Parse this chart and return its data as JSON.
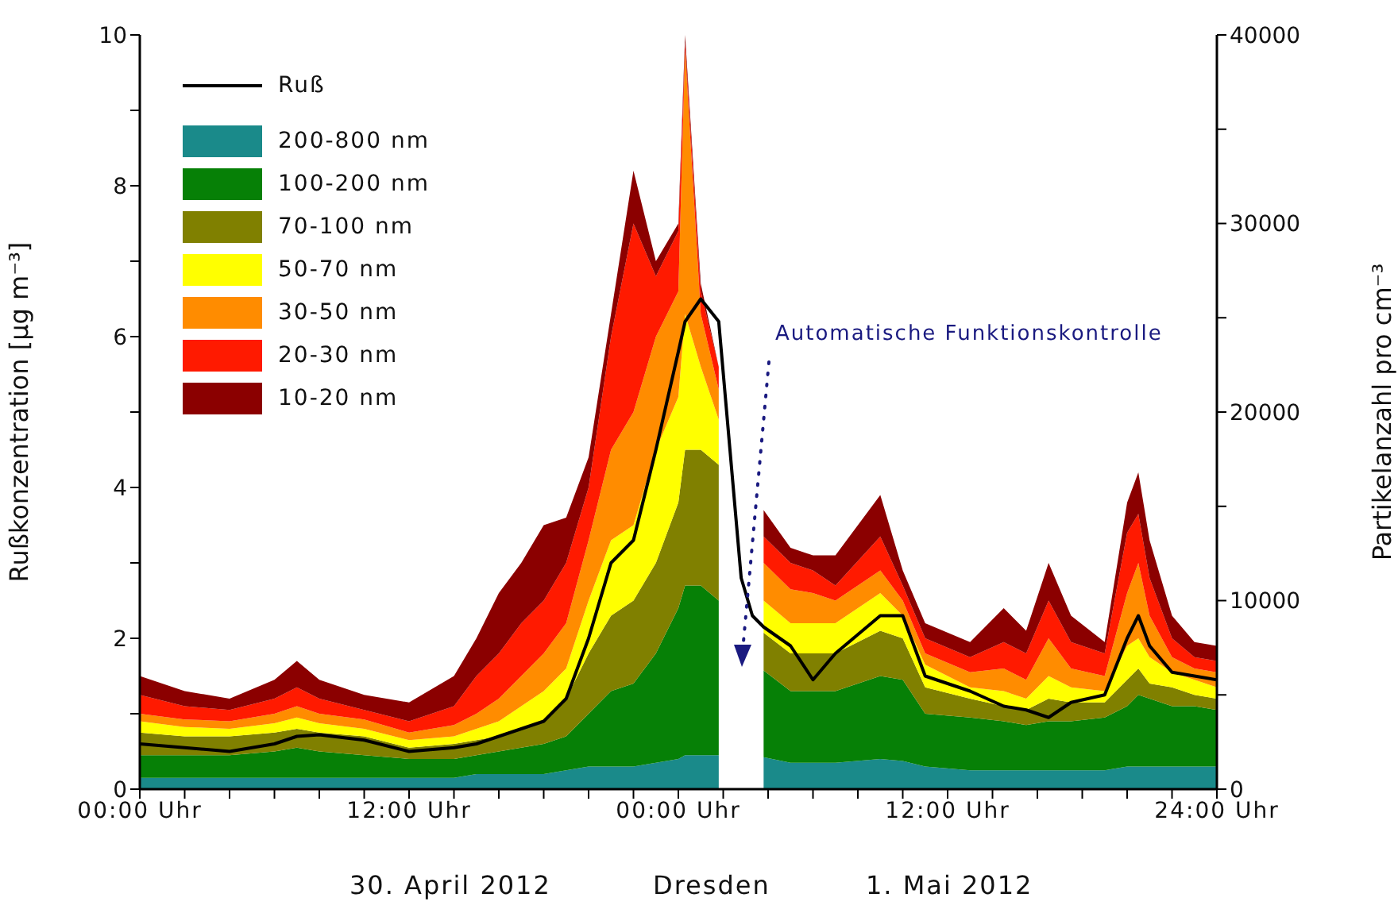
{
  "chart_data": {
    "type": "area",
    "stacked": true,
    "legend": "top left",
    "ylabel": "Rußkonzentration [µg m⁻³]",
    "y2label": "Partikelanzahl pro cm⁻³",
    "annotations": [
      "Automatische Funktionskontrolle",
      "30. April 2012",
      "Dresden",
      "1. Mai 2012"
    ],
    "x": [
      "2012-04-30T00:00",
      "2012-04-30T02:00",
      "2012-04-30T04:00",
      "2012-04-30T06:00",
      "2012-04-30T07:00",
      "2012-04-30T08:00",
      "2012-04-30T10:00",
      "2012-04-30T12:00",
      "2012-04-30T14:00",
      "2012-04-30T15:00",
      "2012-04-30T16:00",
      "2012-04-30T17:00",
      "2012-04-30T18:00",
      "2012-04-30T19:00",
      "2012-04-30T20:00",
      "2012-04-30T21:00",
      "2012-04-30T22:00",
      "2012-04-30T23:00",
      "2012-05-01T00:00",
      "2012-05-01T00:18",
      "2012-05-01T01:00",
      "2012-05-01T01:48",
      "2012-05-01T02:18",
      "2012-05-01T02:48",
      "2012-05-01T03:18",
      "2012-05-01T03:48",
      "2012-05-01T05:00",
      "2012-05-01T06:00",
      "2012-05-01T07:00",
      "2012-05-01T09:00",
      "2012-05-01T10:00",
      "2012-05-01T11:00",
      "2012-05-01T13:00",
      "2012-05-01T14:30",
      "2012-05-01T15:30",
      "2012-05-01T16:30",
      "2012-05-01T17:30",
      "2012-05-01T19:00",
      "2012-05-01T20:00",
      "2012-05-01T20:30",
      "2012-05-01T21:00",
      "2012-05-01T22:00",
      "2012-05-01T23:00",
      "2012-05-02T00:00"
    ],
    "xlim": [
      "2012-04-30T00:00",
      "2012-05-02T00:00"
    ],
    "xticks": [
      {
        "value": "2012-04-30T00:00",
        "label": "00:00 Uhr"
      },
      {
        "value": "2012-04-30T02:00",
        "label": null
      },
      {
        "value": "2012-04-30T04:00",
        "label": null
      },
      {
        "value": "2012-04-30T06:00",
        "label": null
      },
      {
        "value": "2012-04-30T08:00",
        "label": null
      },
      {
        "value": "2012-04-30T10:00",
        "label": null
      },
      {
        "value": "2012-04-30T12:00",
        "label": "12:00 Uhr"
      },
      {
        "value": "2012-04-30T14:00",
        "label": null
      },
      {
        "value": "2012-04-30T16:00",
        "label": null
      },
      {
        "value": "2012-04-30T18:00",
        "label": null
      },
      {
        "value": "2012-04-30T20:00",
        "label": null
      },
      {
        "value": "2012-04-30T22:00",
        "label": null
      },
      {
        "value": "2012-05-01T00:00",
        "label": "00:00 Uhr"
      },
      {
        "value": "2012-05-01T02:00",
        "label": null
      },
      {
        "value": "2012-05-01T04:00",
        "label": null
      },
      {
        "value": "2012-05-01T06:00",
        "label": null
      },
      {
        "value": "2012-05-01T08:00",
        "label": null
      },
      {
        "value": "2012-05-01T10:00",
        "label": null
      },
      {
        "value": "2012-05-01T12:00",
        "label": "12:00 Uhr"
      },
      {
        "value": "2012-05-01T14:00",
        "label": null
      },
      {
        "value": "2012-05-01T16:00",
        "label": null
      },
      {
        "value": "2012-05-01T18:00",
        "label": null
      },
      {
        "value": "2012-05-01T20:00",
        "label": null
      },
      {
        "value": "2012-05-01T22:00",
        "label": null
      },
      {
        "value": "2012-05-02T00:00",
        "label": "24:00 Uhr"
      }
    ],
    "ylim": [
      0,
      10
    ],
    "yticks": [
      0,
      {
        "value": 1,
        "label": null
      },
      2,
      {
        "value": 3,
        "label": null
      },
      4,
      {
        "value": 5,
        "label": null
      },
      6,
      {
        "value": 7,
        "label": null
      },
      8,
      {
        "value": 9,
        "label": null
      },
      10
    ],
    "y2lim": [
      0,
      40000
    ],
    "y2ticks": [
      0,
      {
        "value": 5000,
        "label": null
      },
      10000,
      {
        "value": 15000,
        "label": null
      },
      20000,
      {
        "value": 25000,
        "label": null
      },
      30000,
      {
        "value": 35000,
        "label": null
      },
      40000
    ],
    "series": [
      {
        "name": "Ruß",
        "type": "line",
        "color": "#000000",
        "values": [
          0.6,
          0.55,
          0.5,
          0.6,
          0.7,
          0.72,
          0.65,
          0.5,
          0.55,
          0.6,
          0.7,
          0.8,
          0.9,
          1.2,
          2.0,
          3.0,
          3.3,
          4.5,
          5.8,
          6.2,
          6.5,
          6.2,
          4.5,
          2.8,
          2.3,
          2.15,
          1.9,
          1.45,
          1.8,
          2.3,
          2.3,
          1.5,
          1.3,
          1.1,
          1.05,
          0.95,
          1.15,
          1.25,
          2.0,
          2.3,
          1.9,
          1.55,
          1.5,
          1.45
        ]
      },
      {
        "name": "200-800 nm",
        "axis": "y2",
        "color": "#1a8a8a",
        "values": [
          600,
          600,
          600,
          600,
          600,
          600,
          600,
          600,
          600,
          800,
          800,
          800,
          800,
          1000,
          1200,
          1200,
          1200,
          1400,
          1600,
          1800,
          1800,
          1800,
          null,
          null,
          null,
          1700,
          1400,
          1400,
          1400,
          1600,
          1500,
          1200,
          1000,
          1000,
          1000,
          1000,
          1000,
          1000,
          1200,
          1200,
          1200,
          1200,
          1200,
          1200
        ]
      },
      {
        "name": "100-200 nm",
        "axis": "y2",
        "color": "#068006",
        "values": [
          1200,
          1200,
          1200,
          1400,
          1600,
          1400,
          1200,
          1000,
          1000,
          1000,
          1200,
          1400,
          1600,
          1800,
          2800,
          4000,
          4400,
          5800,
          8000,
          9000,
          9000,
          8200,
          null,
          null,
          null,
          4600,
          3800,
          3800,
          3800,
          4400,
          4300,
          2800,
          2800,
          2600,
          2400,
          2600,
          2600,
          2800,
          3200,
          3800,
          3600,
          3200,
          3200,
          3000
        ]
      },
      {
        "name": "70-100 nm",
        "axis": "y2",
        "color": "#808000",
        "values": [
          1200,
          1000,
          1000,
          1000,
          1000,
          1000,
          1000,
          600,
          800,
          800,
          800,
          1000,
          1200,
          2000,
          3200,
          4000,
          4400,
          4800,
          5600,
          7200,
          7200,
          7200,
          null,
          null,
          null,
          2000,
          2000,
          2000,
          2000,
          2400,
          2200,
          1400,
          1000,
          800,
          800,
          1200,
          1000,
          800,
          1400,
          1400,
          800,
          1000,
          600,
          600
        ]
      },
      {
        "name": "50-70 nm",
        "axis": "y2",
        "color": "#ffff00",
        "values": [
          600,
          500,
          400,
          500,
          600,
          500,
          400,
          400,
          400,
          600,
          800,
          1200,
          1600,
          1600,
          2800,
          4000,
          4000,
          6000,
          5600,
          7200,
          4400,
          2400,
          null,
          null,
          null,
          1700,
          1600,
          1600,
          1600,
          2000,
          1200,
          1200,
          600,
          800,
          600,
          1200,
          800,
          600,
          1800,
          1600,
          1400,
          800,
          800,
          600
        ]
      },
      {
        "name": "30-50 nm",
        "axis": "y2",
        "color": "#ff8c00",
        "values": [
          400,
          400,
          400,
          500,
          600,
          500,
          500,
          400,
          600,
          800,
          1200,
          1600,
          2000,
          2400,
          3200,
          4800,
          6000,
          6000,
          5600,
          14000,
          2800,
          1600,
          null,
          null,
          null,
          2000,
          1800,
          1600,
          1200,
          1200,
          800,
          600,
          800,
          1200,
          1000,
          2000,
          1000,
          800,
          2800,
          4000,
          2200,
          800,
          600,
          800
        ]
      },
      {
        "name": "20-30 nm",
        "axis": "y2",
        "color": "#ff1a00",
        "values": [
          1000,
          700,
          600,
          800,
          1000,
          800,
          500,
          600,
          1000,
          2000,
          2400,
          2800,
          2800,
          3200,
          2800,
          6000,
          10000,
          3200,
          3200,
          400,
          1200,
          1200,
          null,
          null,
          null,
          1400,
          1400,
          1200,
          800,
          1800,
          800,
          800,
          800,
          1400,
          1400,
          2000,
          1400,
          1200,
          3200,
          2600,
          2000,
          1000,
          600,
          600
        ]
      },
      {
        "name": "10-20 nm",
        "axis": "y2",
        "color": "#8b0000",
        "values": [
          1000,
          800,
          600,
          1000,
          1400,
          1000,
          800,
          1000,
          1600,
          2000,
          3200,
          3200,
          4000,
          2400,
          1600,
          1200,
          2800,
          800,
          400,
          400,
          400,
          0,
          null,
          null,
          null,
          1400,
          800,
          800,
          1600,
          2200,
          800,
          800,
          800,
          1800,
          1200,
          2000,
          1400,
          600,
          1600,
          2200,
          2000,
          1200,
          800,
          800
        ]
      }
    ]
  }
}
